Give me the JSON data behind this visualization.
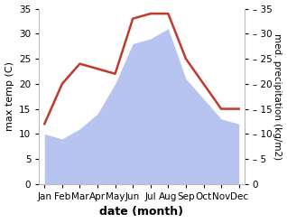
{
  "months": [
    "Jan",
    "Feb",
    "Mar",
    "Apr",
    "May",
    "Jun",
    "Jul",
    "Aug",
    "Sep",
    "Oct",
    "Nov",
    "Dec"
  ],
  "max_temp": [
    10,
    9,
    11,
    14,
    20,
    28,
    29,
    31,
    21,
    17,
    13,
    12
  ],
  "precipitation": [
    12,
    20,
    24,
    23,
    22,
    33,
    34,
    34,
    25,
    20,
    15,
    15
  ],
  "temp_fill_color": "#b8c4f0",
  "precip_color": "#c0392b",
  "xlabel": "date (month)",
  "ylabel_left": "max temp (C)",
  "ylabel_right": "med. precipitation (kg/m2)",
  "ylim_left": [
    0,
    35
  ],
  "ylim_right": [
    0,
    35
  ],
  "yticks_left": [
    0,
    5,
    10,
    15,
    20,
    25,
    30,
    35
  ],
  "yticks_right": [
    0,
    5,
    10,
    15,
    20,
    25,
    30,
    35
  ],
  "bg_color": "#ffffff",
  "spine_color": "#bbbbbb",
  "font_size_label": 8,
  "font_size_tick": 7.5,
  "xlabel_fontsize": 9
}
